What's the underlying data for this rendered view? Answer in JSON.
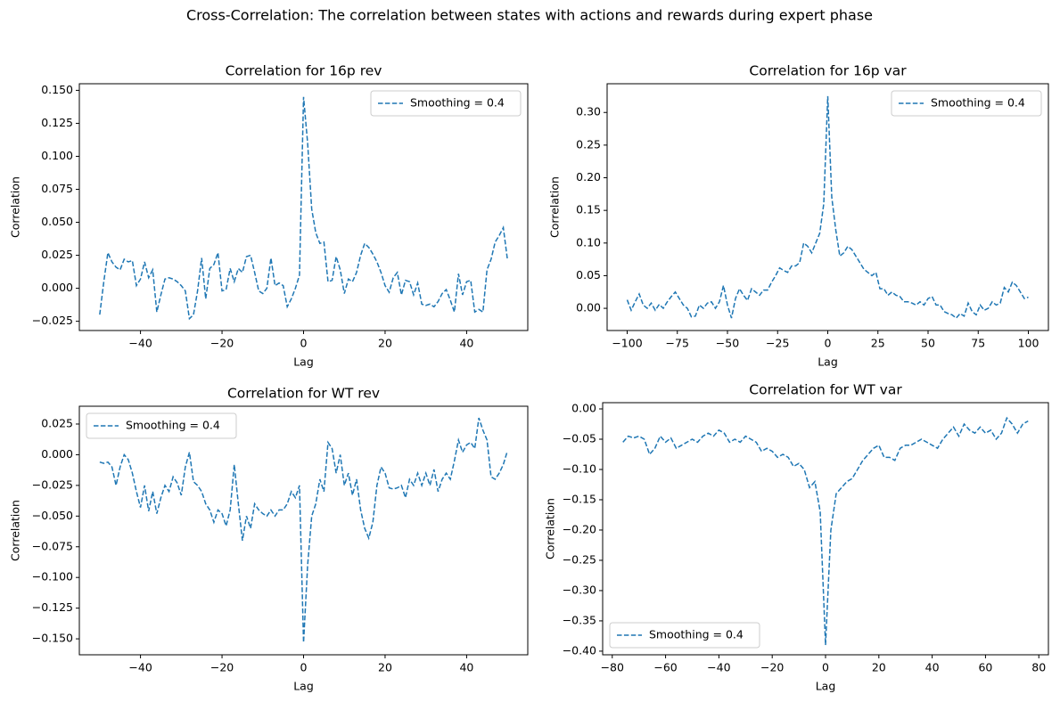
{
  "title": "Cross-Correlation: The correlation between states with actions and rewards during expert phase",
  "chart_data": [
    {
      "type": "line",
      "title": "Correlation for 16p rev",
      "xlabel": "Lag",
      "ylabel": "Correlation",
      "legend": "upper right",
      "linestyle": "dashed",
      "x": [
        -50,
        -49,
        -48,
        -47,
        -46,
        -45,
        -44,
        -43,
        -42,
        -41,
        -40,
        -39,
        -38,
        -37,
        -36,
        -35,
        -34,
        -33,
        -32,
        -31,
        -30,
        -29,
        -28,
        -27,
        -26,
        -25,
        -24,
        -23,
        -22,
        -21,
        -20,
        -19,
        -18,
        -17,
        -16,
        -15,
        -14,
        -13,
        -12,
        -11,
        -10,
        -9,
        -8,
        -7,
        -6,
        -5,
        -4,
        -3,
        -2,
        -1,
        0,
        1,
        2,
        3,
        4,
        5,
        6,
        7,
        8,
        9,
        10,
        11,
        12,
        13,
        14,
        15,
        16,
        17,
        18,
        19,
        20,
        21,
        22,
        23,
        24,
        25,
        26,
        27,
        28,
        29,
        30,
        31,
        32,
        33,
        34,
        35,
        36,
        37,
        38,
        39,
        40,
        41,
        42,
        43,
        44,
        45,
        46,
        47,
        48,
        49,
        50
      ],
      "series": [
        {
          "name": "Smoothing = 0.4",
          "color": "#1f77b4",
          "values": [
            -0.02,
            0.005,
            0.027,
            0.02,
            0.016,
            0.014,
            0.022,
            0.02,
            0.021,
            0.002,
            0.007,
            0.02,
            0.008,
            0.014,
            -0.018,
            -0.005,
            0.007,
            0.008,
            0.007,
            0.005,
            0.002,
            -0.002,
            -0.023,
            -0.02,
            -0.002,
            0.023,
            -0.008,
            0.015,
            0.018,
            0.027,
            -0.002,
            -0.001,
            0.015,
            0.005,
            0.015,
            0.012,
            0.024,
            0.025,
            0.012,
            -0.002,
            -0.004,
            0.0,
            0.023,
            0.002,
            0.004,
            0.002,
            -0.014,
            -0.008,
            0.0,
            0.01,
            0.145,
            0.11,
            0.06,
            0.042,
            0.034,
            0.035,
            0.005,
            0.006,
            0.024,
            0.014,
            -0.004,
            0.007,
            0.005,
            0.012,
            0.025,
            0.034,
            0.031,
            0.026,
            0.02,
            0.012,
            0.002,
            -0.003,
            0.008,
            0.012,
            -0.005,
            0.006,
            0.005,
            -0.005,
            0.004,
            -0.012,
            -0.013,
            -0.012,
            -0.014,
            -0.01,
            -0.004,
            -0.001,
            -0.009,
            -0.018,
            0.011,
            -0.005,
            0.005,
            0.006,
            -0.018,
            -0.016,
            -0.018,
            0.014,
            0.022,
            0.035,
            0.04,
            0.046,
            0.022
          ]
        }
      ],
      "xlim": [
        -55,
        55
      ],
      "ylim": [
        -0.032,
        0.155
      ],
      "xticks": [
        {
          "value": -40,
          "label": "−40"
        },
        {
          "value": -20,
          "label": "−20"
        },
        0,
        20,
        40
      ],
      "yticks": [
        {
          "value": -0.025,
          "label": "−0.025"
        },
        {
          "value": 0,
          "label": "0.000"
        },
        {
          "value": 0.025,
          "label": "0.025"
        },
        {
          "value": 0.05,
          "label": "0.050"
        },
        {
          "value": 0.075,
          "label": "0.075"
        },
        {
          "value": 0.1,
          "label": "0.100"
        },
        {
          "value": 0.125,
          "label": "0.125"
        },
        {
          "value": 0.15,
          "label": "0.150"
        }
      ]
    },
    {
      "type": "line",
      "title": "Correlation for 16p var",
      "xlabel": "Lag",
      "ylabel": "Correlation",
      "legend": "upper right",
      "linestyle": "dashed",
      "x": [
        -100,
        -98,
        -96,
        -94,
        -92,
        -90,
        -88,
        -86,
        -84,
        -82,
        -80,
        -78,
        -76,
        -74,
        -72,
        -70,
        -68,
        -66,
        -64,
        -62,
        -60,
        -58,
        -56,
        -54,
        -52,
        -50,
        -48,
        -46,
        -44,
        -42,
        -40,
        -38,
        -36,
        -34,
        -32,
        -30,
        -28,
        -26,
        -24,
        -22,
        -20,
        -18,
        -16,
        -14,
        -12,
        -10,
        -8,
        -6,
        -4,
        -2,
        0,
        2,
        4,
        6,
        8,
        10,
        12,
        14,
        16,
        18,
        20,
        22,
        24,
        26,
        28,
        30,
        32,
        34,
        36,
        38,
        40,
        42,
        44,
        46,
        48,
        50,
        52,
        54,
        56,
        58,
        60,
        62,
        64,
        66,
        68,
        70,
        72,
        74,
        76,
        78,
        80,
        82,
        84,
        86,
        88,
        90,
        92,
        94,
        96,
        98,
        100
      ],
      "series": [
        {
          "name": "Smoothing = 0.4",
          "color": "#1f77b4",
          "values": [
            0.013,
            -0.003,
            0.01,
            0.022,
            0.005,
            0.0,
            0.008,
            -0.003,
            0.006,
            0.0,
            0.01,
            0.018,
            0.025,
            0.015,
            0.005,
            0.0,
            -0.013,
            -0.012,
            0.005,
            0.0,
            0.008,
            0.01,
            0.0,
            0.01,
            0.035,
            0.005,
            -0.015,
            0.015,
            0.03,
            0.02,
            0.012,
            0.03,
            0.025,
            0.02,
            0.028,
            0.028,
            0.04,
            0.05,
            0.062,
            0.058,
            0.055,
            0.065,
            0.065,
            0.07,
            0.1,
            0.095,
            0.085,
            0.1,
            0.115,
            0.16,
            0.325,
            0.17,
            0.12,
            0.08,
            0.085,
            0.095,
            0.09,
            0.08,
            0.07,
            0.06,
            0.055,
            0.05,
            0.055,
            0.03,
            0.03,
            0.02,
            0.025,
            0.02,
            0.018,
            0.01,
            0.01,
            0.008,
            0.005,
            0.01,
            0.005,
            0.015,
            0.018,
            0.005,
            0.005,
            -0.005,
            -0.008,
            -0.01,
            -0.015,
            -0.008,
            -0.012,
            0.008,
            -0.005,
            -0.01,
            0.005,
            -0.003,
            0.0,
            0.01,
            0.005,
            0.008,
            0.032,
            0.025,
            0.04,
            0.035,
            0.025,
            0.015,
            0.017
          ]
        }
      ],
      "xlim": [
        -110,
        110
      ],
      "ylim": [
        -0.034,
        0.344
      ],
      "xticks": [
        {
          "value": -100,
          "label": "−100"
        },
        {
          "value": -75,
          "label": "−75"
        },
        {
          "value": -50,
          "label": "−50"
        },
        {
          "value": -25,
          "label": "−25"
        },
        0,
        25,
        50,
        75,
        100
      ],
      "yticks": [
        {
          "value": 0,
          "label": "0.00"
        },
        0.05,
        {
          "value": 0.1,
          "label": "0.10"
        },
        0.15,
        {
          "value": 0.2,
          "label": "0.20"
        },
        0.25,
        {
          "value": 0.3,
          "label": "0.30"
        }
      ]
    },
    {
      "type": "line",
      "title": "Correlation for WT rev",
      "xlabel": "Lag",
      "ylabel": "Correlation",
      "legend": "upper left",
      "linestyle": "dashed",
      "x": [
        -50,
        -49,
        -48,
        -47,
        -46,
        -45,
        -44,
        -43,
        -42,
        -41,
        -40,
        -39,
        -38,
        -37,
        -36,
        -35,
        -34,
        -33,
        -32,
        -31,
        -30,
        -29,
        -28,
        -27,
        -26,
        -25,
        -24,
        -23,
        -22,
        -21,
        -20,
        -19,
        -18,
        -17,
        -16,
        -15,
        -14,
        -13,
        -12,
        -11,
        -10,
        -9,
        -8,
        -7,
        -6,
        -5,
        -4,
        -3,
        -2,
        -1,
        0,
        1,
        2,
        3,
        4,
        5,
        6,
        7,
        8,
        9,
        10,
        11,
        12,
        13,
        14,
        15,
        16,
        17,
        18,
        19,
        20,
        21,
        22,
        23,
        24,
        25,
        26,
        27,
        28,
        29,
        30,
        31,
        32,
        33,
        34,
        35,
        36,
        37,
        38,
        39,
        40,
        41,
        42,
        43,
        44,
        45,
        46,
        47,
        48,
        49,
        50
      ],
      "series": [
        {
          "name": "Smoothing = 0.4",
          "color": "#1f77b4",
          "values": [
            -0.006,
            -0.007,
            -0.006,
            -0.01,
            -0.025,
            -0.01,
            0.0,
            -0.004,
            -0.015,
            -0.03,
            -0.043,
            -0.025,
            -0.046,
            -0.03,
            -0.048,
            -0.035,
            -0.025,
            -0.03,
            -0.018,
            -0.023,
            -0.033,
            -0.01,
            0.002,
            -0.022,
            -0.025,
            -0.03,
            -0.04,
            -0.045,
            -0.055,
            -0.045,
            -0.048,
            -0.058,
            -0.045,
            -0.008,
            -0.04,
            -0.07,
            -0.05,
            -0.06,
            -0.04,
            -0.045,
            -0.048,
            -0.05,
            -0.045,
            -0.05,
            -0.045,
            -0.045,
            -0.04,
            -0.03,
            -0.035,
            -0.025,
            -0.153,
            -0.09,
            -0.05,
            -0.04,
            -0.02,
            -0.03,
            0.01,
            0.005,
            -0.015,
            0.0,
            -0.025,
            -0.015,
            -0.033,
            -0.02,
            -0.045,
            -0.06,
            -0.068,
            -0.055,
            -0.025,
            -0.01,
            -0.015,
            -0.027,
            -0.028,
            -0.027,
            -0.025,
            -0.035,
            -0.02,
            -0.025,
            -0.015,
            -0.025,
            -0.015,
            -0.025,
            -0.012,
            -0.03,
            -0.02,
            -0.015,
            -0.02,
            -0.005,
            0.012,
            0.002,
            0.008,
            0.01,
            0.005,
            0.03,
            0.02,
            0.012,
            -0.018,
            -0.02,
            -0.015,
            -0.008,
            0.003
          ]
        }
      ],
      "xlim": [
        -55,
        55
      ],
      "ylim": [
        -0.163,
        0.0395
      ],
      "xticks": [
        {
          "value": -40,
          "label": "−40"
        },
        {
          "value": -20,
          "label": "−20"
        },
        0,
        20,
        40
      ],
      "yticks": [
        {
          "value": -0.15,
          "label": "−0.150"
        },
        {
          "value": -0.125,
          "label": "−0.125"
        },
        {
          "value": -0.1,
          "label": "−0.100"
        },
        {
          "value": -0.075,
          "label": "−0.075"
        },
        {
          "value": -0.05,
          "label": "−0.050"
        },
        {
          "value": -0.025,
          "label": "−0.025"
        },
        {
          "value": 0,
          "label": "0.000"
        },
        {
          "value": 0.025,
          "label": "0.025"
        }
      ]
    },
    {
      "type": "line",
      "title": "Correlation for WT var",
      "xlabel": "Lag",
      "ylabel": "Correlation",
      "legend": "lower left",
      "linestyle": "dashed",
      "x": [
        -76,
        -74,
        -72,
        -70,
        -68,
        -66,
        -64,
        -62,
        -60,
        -58,
        -56,
        -54,
        -52,
        -50,
        -48,
        -46,
        -44,
        -42,
        -40,
        -38,
        -36,
        -34,
        -32,
        -30,
        -28,
        -26,
        -24,
        -22,
        -20,
        -18,
        -16,
        -14,
        -12,
        -10,
        -8,
        -6,
        -4,
        -2,
        0,
        2,
        4,
        6,
        8,
        10,
        12,
        14,
        16,
        18,
        20,
        22,
        24,
        26,
        28,
        30,
        32,
        34,
        36,
        38,
        40,
        42,
        44,
        46,
        48,
        50,
        52,
        54,
        56,
        58,
        60,
        62,
        64,
        66,
        68,
        70,
        72,
        74,
        76
      ],
      "series": [
        {
          "name": "Smoothing = 0.4",
          "color": "#1f77b4",
          "values": [
            -0.055,
            -0.045,
            -0.048,
            -0.045,
            -0.05,
            -0.075,
            -0.065,
            -0.045,
            -0.055,
            -0.048,
            -0.065,
            -0.06,
            -0.055,
            -0.05,
            -0.055,
            -0.045,
            -0.04,
            -0.045,
            -0.035,
            -0.04,
            -0.055,
            -0.05,
            -0.055,
            -0.045,
            -0.05,
            -0.055,
            -0.07,
            -0.065,
            -0.07,
            -0.08,
            -0.075,
            -0.08,
            -0.095,
            -0.09,
            -0.1,
            -0.13,
            -0.12,
            -0.17,
            -0.39,
            -0.2,
            -0.14,
            -0.13,
            -0.12,
            -0.115,
            -0.1,
            -0.085,
            -0.075,
            -0.065,
            -0.06,
            -0.08,
            -0.08,
            -0.085,
            -0.065,
            -0.06,
            -0.06,
            -0.055,
            -0.05,
            -0.055,
            -0.06,
            -0.065,
            -0.05,
            -0.04,
            -0.03,
            -0.045,
            -0.025,
            -0.035,
            -0.04,
            -0.03,
            -0.04,
            -0.035,
            -0.05,
            -0.04,
            -0.015,
            -0.025,
            -0.04,
            -0.025,
            -0.02
          ]
        }
      ],
      "xlim": [
        -83.6,
        83.6
      ],
      "ylim": [
        -0.406,
        0.0103
      ],
      "xticks": [
        {
          "value": -80,
          "label": "−80"
        },
        {
          "value": -60,
          "label": "−60"
        },
        {
          "value": -40,
          "label": "−40"
        },
        {
          "value": -20,
          "label": "−20"
        },
        0,
        20,
        40,
        60,
        80
      ],
      "yticks": [
        {
          "value": -0.4,
          "label": "−0.40"
        },
        {
          "value": -0.35,
          "label": "−0.35"
        },
        {
          "value": -0.3,
          "label": "−0.30"
        },
        {
          "value": -0.25,
          "label": "−0.25"
        },
        {
          "value": -0.2,
          "label": "−0.20"
        },
        {
          "value": -0.15,
          "label": "−0.15"
        },
        {
          "value": -0.1,
          "label": "−0.10"
        },
        {
          "value": -0.05,
          "label": "−0.05"
        },
        {
          "value": 0,
          "label": "0.00"
        }
      ]
    }
  ]
}
